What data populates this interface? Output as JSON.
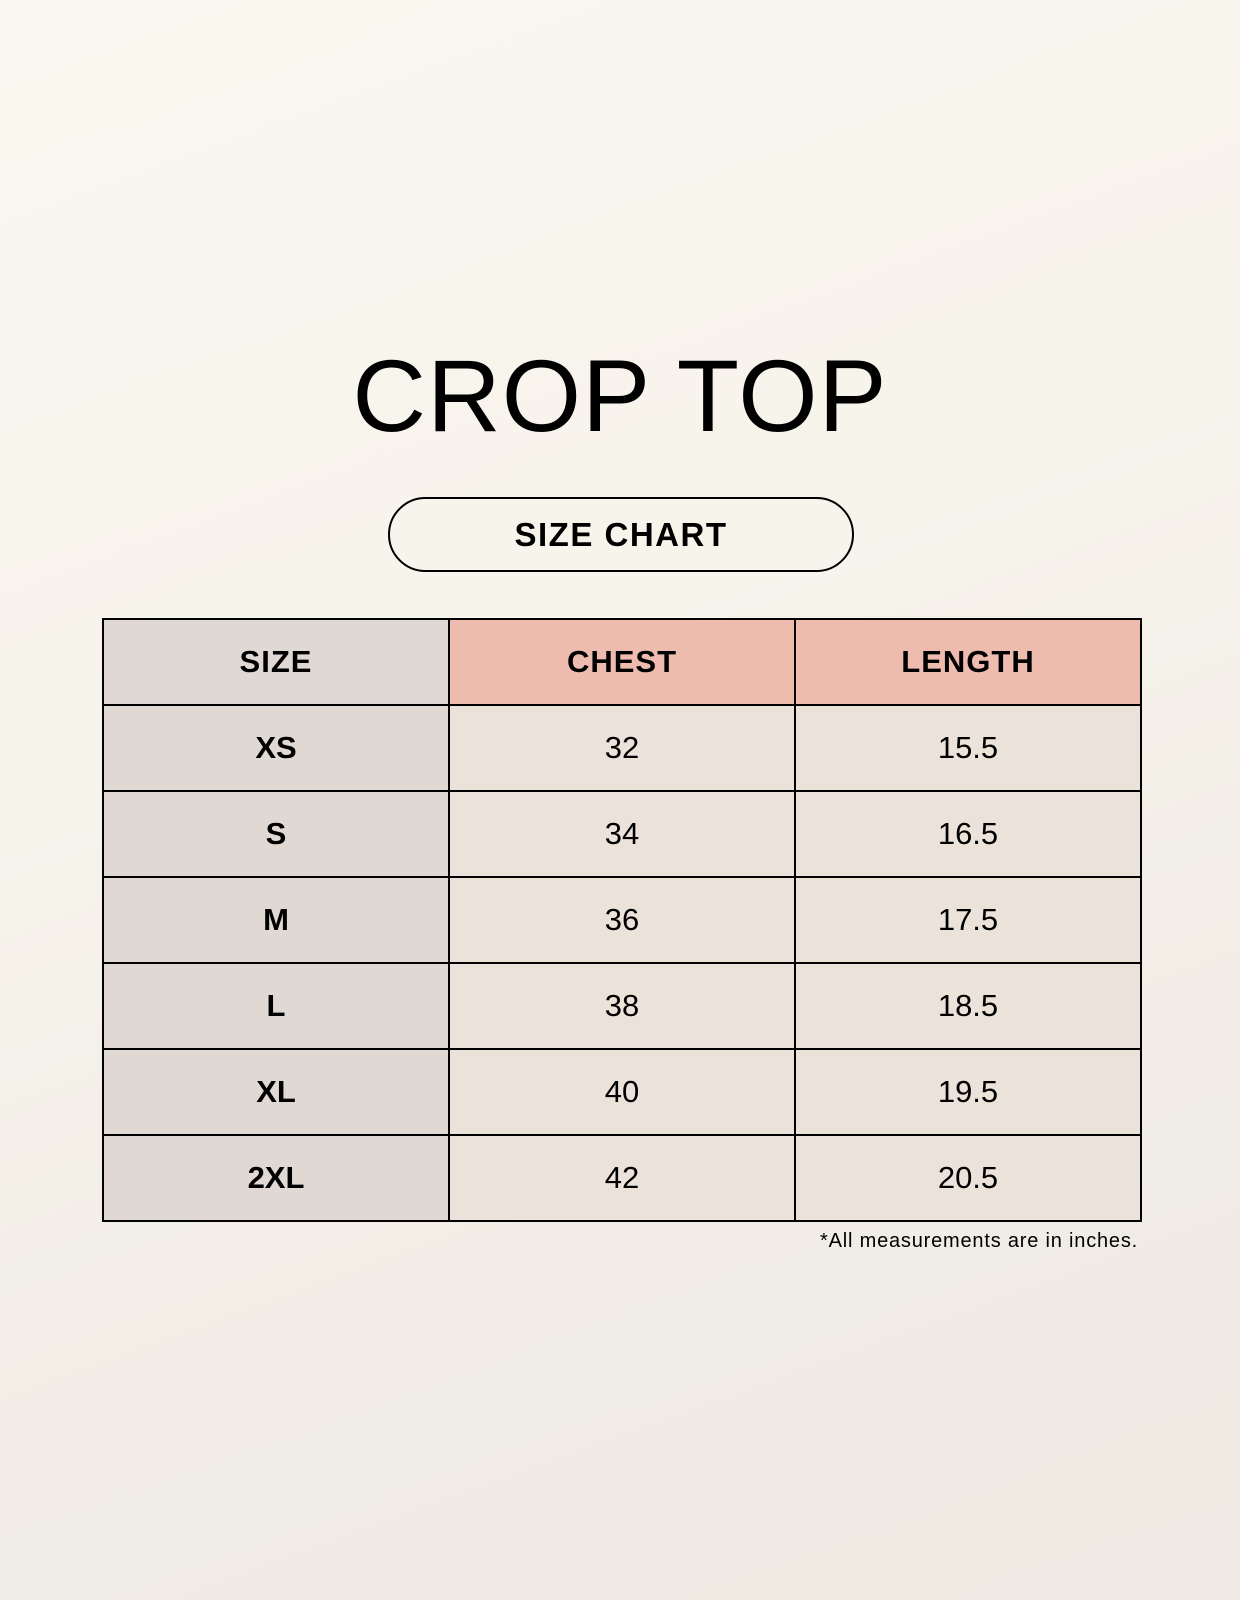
{
  "title": "CROP TOP",
  "subtitle": "SIZE CHART",
  "colors": {
    "size_column": "#e0d9d3",
    "header_highlight": "#eebcaf",
    "cell": "#ebe3d9",
    "background": "#f7f4ec"
  },
  "table": {
    "headers": [
      "SIZE",
      "CHEST",
      "LENGTH"
    ],
    "rows": [
      [
        "XS",
        "32",
        "15.5"
      ],
      [
        "S",
        "34",
        "16.5"
      ],
      [
        "M",
        "36",
        "17.5"
      ],
      [
        "L",
        "38",
        "18.5"
      ],
      [
        "XL",
        "40",
        "19.5"
      ],
      [
        "2XL",
        "42",
        "20.5"
      ]
    ]
  },
  "note": "*All measurements are in inches."
}
